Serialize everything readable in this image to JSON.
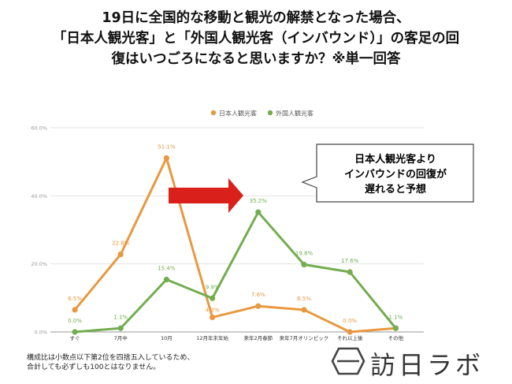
{
  "title": {
    "line1": "19日に全国的な移動と観光の解禁となった場合、",
    "line2": "「日本人観光客」と「外国人観光客（インバウンド）」の客足の回",
    "line3": "復はいつごろになると思いますか？※単一回答"
  },
  "chart_data": {
    "type": "line",
    "categories": [
      "すぐ",
      "7月中",
      "10月",
      "12月年末年始",
      "来年2月春節",
      "来年7月オリンピック",
      "それ以上後",
      "その他"
    ],
    "ylim": [
      0,
      60
    ],
    "yticks": [
      "0.0%",
      "20.0%",
      "40.0%",
      "60.0%"
    ],
    "ytick_values": [
      0,
      20,
      40,
      60
    ],
    "legend_position": "top-center",
    "grid": true,
    "series": [
      {
        "name": "日本人観光客",
        "color": "#e8993f",
        "values": [
          6.5,
          22.8,
          51.1,
          4.3,
          7.6,
          6.5,
          0.0,
          1.1
        ],
        "labels": [
          "6.5%",
          "22.8%",
          "51.1%",
          "4.3%",
          "7.6%",
          "6.5%",
          "0.0%",
          ""
        ]
      },
      {
        "name": "外国人観光客",
        "color": "#73ad4f",
        "values": [
          0.0,
          1.1,
          15.4,
          9.9,
          35.2,
          19.8,
          17.6,
          1.1
        ],
        "labels": [
          "0.0%",
          "1.1%",
          "15.4%",
          "9.9%",
          "35.2%",
          "19.8%",
          "17.6%",
          "1.1%"
        ]
      }
    ]
  },
  "callout": {
    "line1": "日本人観光客より",
    "line2": "インバウンドの回復が",
    "line3": "遅れると予想"
  },
  "arrow_color": "#d9201a",
  "footnote": {
    "line1": "構成比は小数点以下第2位を四捨五入しているため、",
    "line2": "合計しても必ずしも100とはなりません。"
  },
  "logo": {
    "text": "訪日ラボ",
    "icon": "hexagon-logo-icon"
  }
}
